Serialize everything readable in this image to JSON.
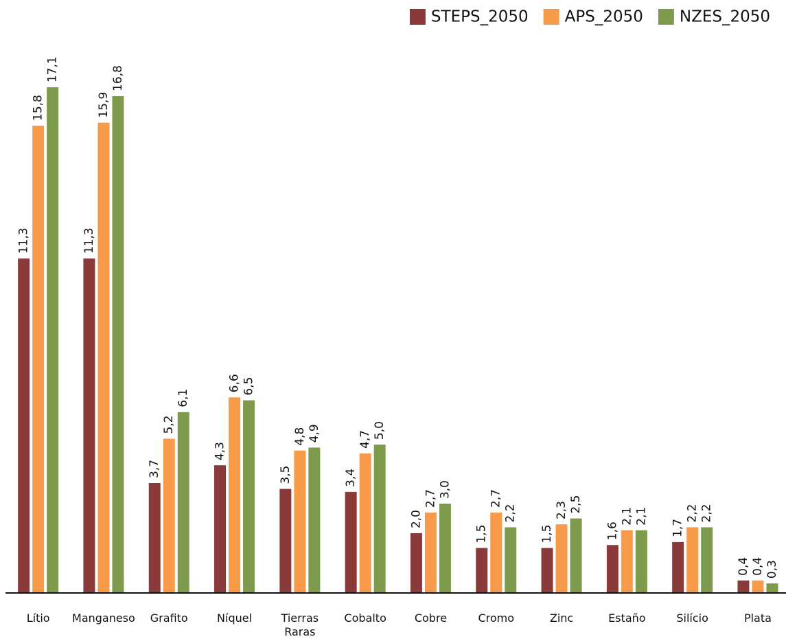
{
  "chart_data": {
    "type": "bar",
    "categories": [
      "Lítio",
      "Manganeso",
      "Grafito",
      "Níquel",
      "Tierras\nRaras",
      "Cobalto",
      "Cobre",
      "Cromo",
      "Zinc",
      "Estaño",
      "Silício",
      "Plata"
    ],
    "series": [
      {
        "name": "STEPS_2050",
        "color": "#8b3a3a",
        "values": [
          11.3,
          11.3,
          3.7,
          4.3,
          3.5,
          3.4,
          2.0,
          1.5,
          1.5,
          1.6,
          1.7,
          0.4
        ],
        "value_labels": [
          "11,3",
          "11,3",
          "3,7",
          "4,3",
          "3,5",
          "3,4",
          "2,0",
          "1,5",
          "1,5",
          "1,6",
          "1,7",
          "0,4"
        ]
      },
      {
        "name": "APS_2050",
        "color": "#f79b4b",
        "values": [
          15.8,
          15.9,
          5.2,
          6.6,
          4.8,
          4.7,
          2.7,
          2.7,
          2.3,
          2.1,
          2.2,
          0.4
        ],
        "value_labels": [
          "15,8",
          "15,9",
          "5,2",
          "6,6",
          "4,8",
          "4,7",
          "2,7",
          "2,7",
          "2,3",
          "2,1",
          "2,2",
          "0,4"
        ]
      },
      {
        "name": "NZES_2050",
        "color": "#7e9a4c",
        "values": [
          17.1,
          16.8,
          6.1,
          6.5,
          4.9,
          5.0,
          3.0,
          2.2,
          2.5,
          2.1,
          2.2,
          0.3
        ],
        "value_labels": [
          "17,1",
          "16,8",
          "6,1",
          "6,5",
          "4,9",
          "5,0",
          "3,0",
          "2,2",
          "2,5",
          "2,1",
          "2,2",
          "0,3"
        ]
      }
    ],
    "legend": "top-right"
  }
}
